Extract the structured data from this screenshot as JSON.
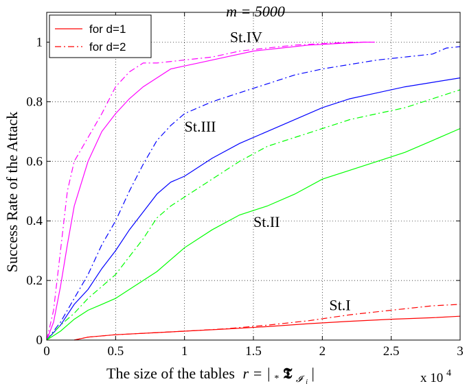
{
  "chart_data": {
    "type": "line",
    "title": "m = 5000",
    "xlabel": "The size of the tables r = |*𝕿_I_i|",
    "xlabel_parts": {
      "text": "The size of the tables",
      "math": "r = |",
      "sub_star": "*",
      "sym": "𝕿",
      "sub_I": "𝓘",
      "sub_i": "i",
      "close": "|"
    },
    "ylabel": "Success Rate of the Attack",
    "x_multiplier_label": "x 10",
    "x_multiplier_exp": "4",
    "xlim": [
      0,
      3
    ],
    "ylim": [
      0,
      1.1
    ],
    "xticks": [
      0,
      0.5,
      1,
      1.5,
      2,
      2.5,
      3
    ],
    "xtick_labels": [
      "0",
      "0.5",
      "1",
      "1.5",
      "2",
      "2.5",
      "3"
    ],
    "yticks": [
      0,
      0.2,
      0.4,
      0.6,
      0.8,
      1
    ],
    "ytick_labels": [
      "0",
      "0.2",
      "0.4",
      "0.6",
      "0.8",
      "1"
    ],
    "grid": true,
    "legend_position": "top-left",
    "legend": [
      {
        "label": "for d=1",
        "style": "solid",
        "color": "#ff0000"
      },
      {
        "label": "for d=2",
        "style": "dashdot",
        "color": "#ff0000"
      }
    ],
    "annotations": [
      {
        "text": "St.IV",
        "x": 1.33,
        "y": 1.0
      },
      {
        "text": "St.III",
        "x": 1.0,
        "y": 0.7
      },
      {
        "text": "St.II",
        "x": 1.5,
        "y": 0.38
      },
      {
        "text": "St.I",
        "x": 2.05,
        "y": 0.1
      }
    ],
    "series": [
      {
        "group": "St.IV",
        "d": 1,
        "color": "#ff00ff",
        "style": "solid",
        "x": [
          0,
          0.05,
          0.1,
          0.15,
          0.2,
          0.3,
          0.4,
          0.5,
          0.6,
          0.7,
          0.8,
          0.9,
          1.0,
          1.1,
          1.3,
          1.5,
          1.7,
          1.9,
          2.1,
          2.3,
          2.38
        ],
        "y": [
          0,
          0.06,
          0.18,
          0.32,
          0.45,
          0.6,
          0.7,
          0.76,
          0.81,
          0.85,
          0.88,
          0.91,
          0.92,
          0.93,
          0.95,
          0.97,
          0.98,
          0.99,
          0.995,
          1.0,
          1.0
        ]
      },
      {
        "group": "St.IV",
        "d": 2,
        "color": "#ff00ff",
        "style": "dashdot",
        "x": [
          0,
          0.05,
          0.1,
          0.15,
          0.2,
          0.3,
          0.4,
          0.5,
          0.6,
          0.7,
          0.8,
          1.0,
          1.2,
          1.4,
          1.6,
          1.8,
          2.0,
          2.2,
          2.38
        ],
        "y": [
          0,
          0.1,
          0.3,
          0.5,
          0.6,
          0.68,
          0.76,
          0.85,
          0.9,
          0.93,
          0.93,
          0.94,
          0.95,
          0.97,
          0.98,
          0.99,
          0.995,
          1.0,
          1.0
        ]
      },
      {
        "group": "St.III",
        "d": 1,
        "color": "#0000ff",
        "style": "solid",
        "x": [
          0,
          0.1,
          0.2,
          0.3,
          0.4,
          0.5,
          0.6,
          0.7,
          0.8,
          0.9,
          1.0,
          1.2,
          1.4,
          1.6,
          1.8,
          2.0,
          2.2,
          2.4,
          2.6,
          2.8,
          3.0
        ],
        "y": [
          0,
          0.05,
          0.12,
          0.17,
          0.24,
          0.3,
          0.37,
          0.43,
          0.49,
          0.53,
          0.55,
          0.61,
          0.66,
          0.7,
          0.74,
          0.78,
          0.81,
          0.83,
          0.85,
          0.865,
          0.88
        ]
      },
      {
        "group": "St.III",
        "d": 2,
        "color": "#0000ff",
        "style": "dashdot",
        "x": [
          0,
          0.1,
          0.2,
          0.3,
          0.4,
          0.5,
          0.6,
          0.7,
          0.8,
          0.9,
          1.0,
          1.2,
          1.4,
          1.6,
          1.8,
          2.0,
          2.2,
          2.4,
          2.6,
          2.8,
          2.9,
          3.0
        ],
        "y": [
          0,
          0.06,
          0.14,
          0.22,
          0.32,
          0.4,
          0.5,
          0.59,
          0.67,
          0.72,
          0.76,
          0.8,
          0.83,
          0.86,
          0.89,
          0.91,
          0.925,
          0.94,
          0.95,
          0.96,
          0.98,
          0.985
        ]
      },
      {
        "group": "St.II",
        "d": 1,
        "color": "#00ff00",
        "style": "solid",
        "x": [
          0,
          0.1,
          0.2,
          0.3,
          0.4,
          0.5,
          0.6,
          0.7,
          0.8,
          0.9,
          1.0,
          1.2,
          1.4,
          1.6,
          1.8,
          2.0,
          2.2,
          2.4,
          2.6,
          2.8,
          3.0
        ],
        "y": [
          0,
          0.03,
          0.07,
          0.1,
          0.12,
          0.14,
          0.17,
          0.2,
          0.23,
          0.27,
          0.31,
          0.37,
          0.42,
          0.45,
          0.49,
          0.54,
          0.57,
          0.6,
          0.63,
          0.67,
          0.71
        ]
      },
      {
        "group": "St.II",
        "d": 2,
        "color": "#00ff00",
        "style": "dashdot",
        "x": [
          0,
          0.1,
          0.2,
          0.3,
          0.4,
          0.5,
          0.6,
          0.7,
          0.8,
          0.9,
          1.0,
          1.2,
          1.4,
          1.6,
          1.8,
          2.0,
          2.2,
          2.4,
          2.6,
          2.8,
          3.0
        ],
        "y": [
          0,
          0.05,
          0.09,
          0.14,
          0.18,
          0.22,
          0.28,
          0.34,
          0.41,
          0.45,
          0.48,
          0.54,
          0.6,
          0.65,
          0.68,
          0.71,
          0.74,
          0.76,
          0.78,
          0.81,
          0.84
        ]
      },
      {
        "group": "St.I",
        "d": 1,
        "color": "#ff0000",
        "style": "solid",
        "x": [
          0.2,
          0.25,
          0.3,
          0.5,
          0.8,
          1.0,
          1.3,
          1.6,
          1.9,
          2.2,
          2.5,
          2.8,
          3.0
        ],
        "y": [
          0,
          0.005,
          0.01,
          0.018,
          0.025,
          0.03,
          0.037,
          0.045,
          0.055,
          0.063,
          0.07,
          0.075,
          0.08
        ]
      },
      {
        "group": "St.I",
        "d": 2,
        "color": "#ff0000",
        "style": "dashdot",
        "x": [
          0.2,
          0.25,
          0.3,
          0.5,
          0.8,
          1.0,
          1.3,
          1.6,
          1.9,
          2.2,
          2.5,
          2.8,
          3.0
        ],
        "y": [
          0,
          0.005,
          0.01,
          0.018,
          0.025,
          0.03,
          0.038,
          0.05,
          0.065,
          0.085,
          0.1,
          0.115,
          0.12
        ]
      }
    ]
  }
}
